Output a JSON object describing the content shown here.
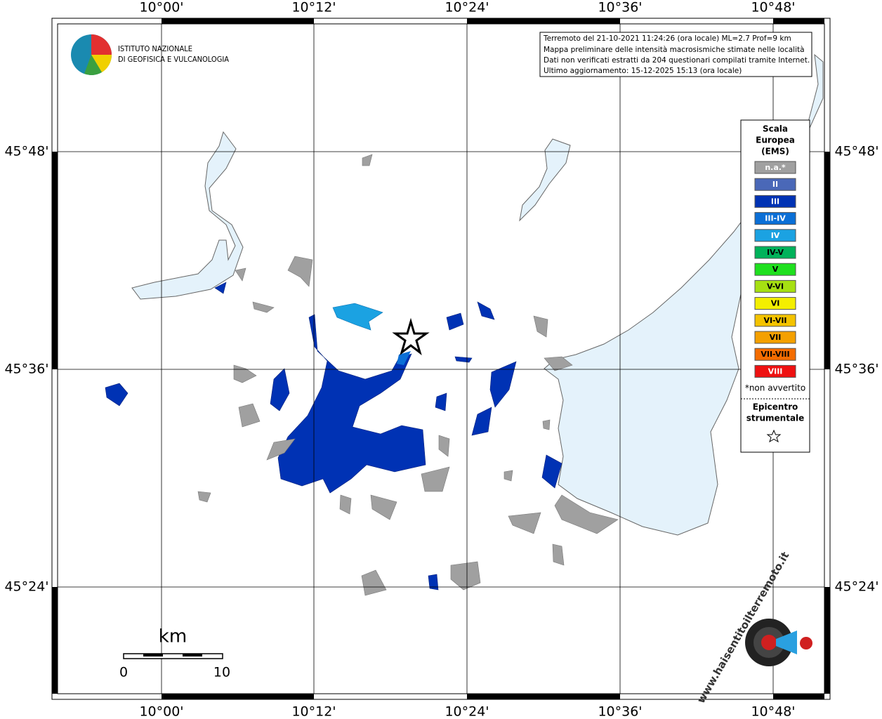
{
  "map": {
    "lon_ticks": [
      "10°00'",
      "10°12'",
      "10°24'",
      "10°36'",
      "10°48'"
    ],
    "lat_ticks": [
      "45°48'",
      "45°36'",
      "45°24'"
    ],
    "logo": [
      "ISTITUTO NAZIONALE",
      "DI GEOFISICA E VULCANOLOGIA"
    ],
    "info": [
      "Terremoto del 21-10-2021 11:24:26 (ora locale) ML=2.7 Prof=9 km",
      "Mappa preliminare delle intensità macrosismiche stimate nelle località",
      "Dati non verificati estratti da 204 questionari compilati tramite Internet.",
      "Ultimo aggiornamento: 15-12-2025 15:13 (ora locale)"
    ],
    "legend": {
      "title": [
        "Scala",
        "Europea",
        "(EMS)"
      ],
      "items": [
        {
          "label": "n.a.*",
          "color": "#a0a0a0"
        },
        {
          "label": "II",
          "color": "#4a68b8"
        },
        {
          "label": "III",
          "color": "#0032b4"
        },
        {
          "label": "III-IV",
          "color": "#0b6fd6"
        },
        {
          "label": "IV",
          "color": "#1ba2e2"
        },
        {
          "label": "IV-V",
          "color": "#00b25a"
        },
        {
          "label": "V",
          "color": "#1fe01f"
        },
        {
          "label": "V-VI",
          "color": "#a6e012"
        },
        {
          "label": "VI",
          "color": "#f4ef00"
        },
        {
          "label": "VI-VII",
          "color": "#f4c300"
        },
        {
          "label": "VII",
          "color": "#f4a000"
        },
        {
          "label": "VII-VIII",
          "color": "#f46c00"
        },
        {
          "label": "VIII",
          "color": "#ee1111"
        }
      ],
      "note": "*non avvertito",
      "epicenter": [
        "Epicentro",
        "strumentale"
      ]
    },
    "scale": {
      "unit": "km",
      "labels": [
        "0",
        "10"
      ]
    },
    "site": "www.haisentitoilterremoto.it"
  }
}
